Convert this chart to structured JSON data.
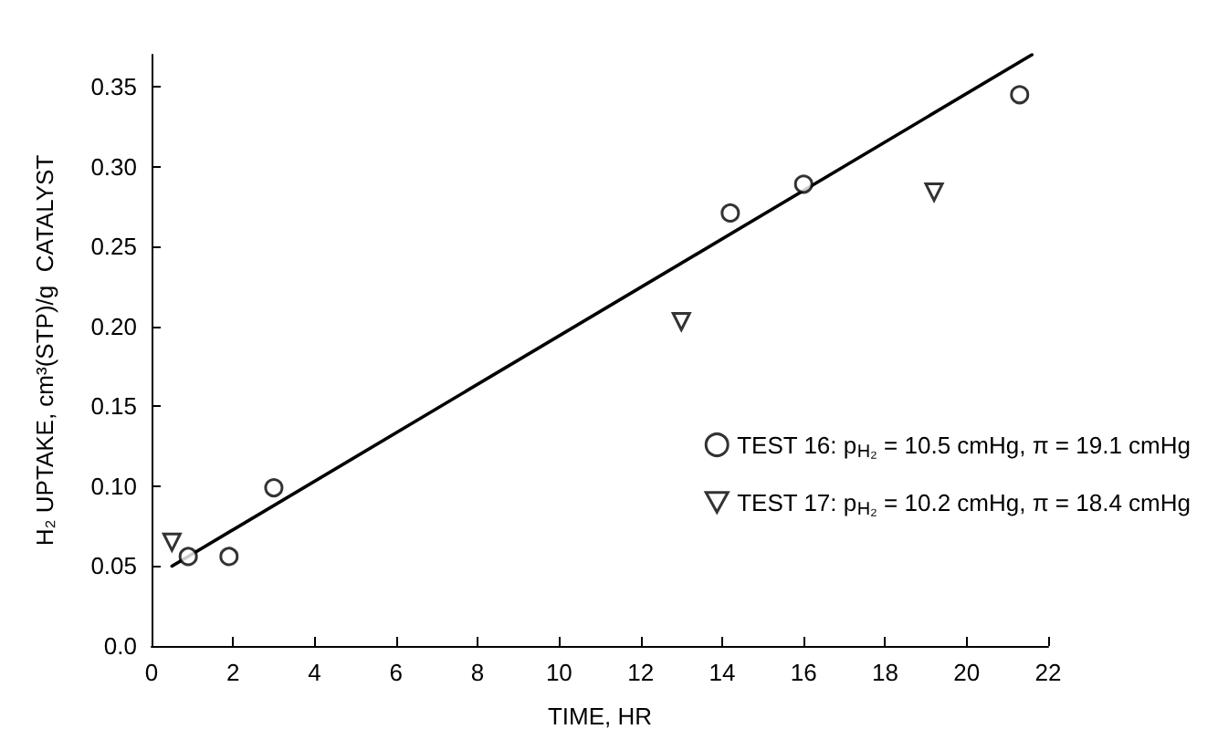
{
  "chart_data": {
    "type": "scatter",
    "xlabel": "TIME, HR",
    "ylabel": "H₂ UPTAKE, cm³(STP)/g  CATALYST",
    "xlim": [
      0,
      22
    ],
    "xticks": [
      0,
      2,
      4,
      6,
      8,
      10,
      12,
      14,
      16,
      18,
      20,
      22
    ],
    "ylim": [
      0,
      0.37
    ],
    "yticks": [
      {
        "value": 0,
        "label": "0.0"
      },
      0.05,
      {
        "value": 0.1,
        "label": "0.10"
      },
      0.15,
      {
        "value": 0.2,
        "label": "0.20"
      },
      0.25,
      {
        "value": 0.3,
        "label": "0.30"
      },
      0.35
    ],
    "grid": false,
    "legend": "right",
    "series": [
      {
        "name": "TEST 16: p$_{H₂}$ = 10.5 cmHg, π = 19.1 cmHg",
        "color": "#000000",
        "marker": "circle",
        "x": [
          0.9,
          1.9,
          3.0,
          14.2,
          16.0,
          21.3
        ],
        "values": [
          0.056,
          0.056,
          0.099,
          0.271,
          0.289,
          0.345
        ]
      },
      {
        "name": "TEST 17: p$_{H₂}$ = 10.2 cmHg, π = 18.4 cmHg",
        "color": "#000000",
        "marker": "triangle",
        "x": [
          0.5,
          13.0,
          19.2
        ],
        "values": [
          0.065,
          0.203,
          0.284
        ]
      },
      {
        "type": "line",
        "color": "#000000",
        "marker": "none",
        "line_style": "solid",
        "x": [
          0.5,
          21.6
        ],
        "values": [
          0.05,
          0.37
        ]
      }
    ]
  }
}
